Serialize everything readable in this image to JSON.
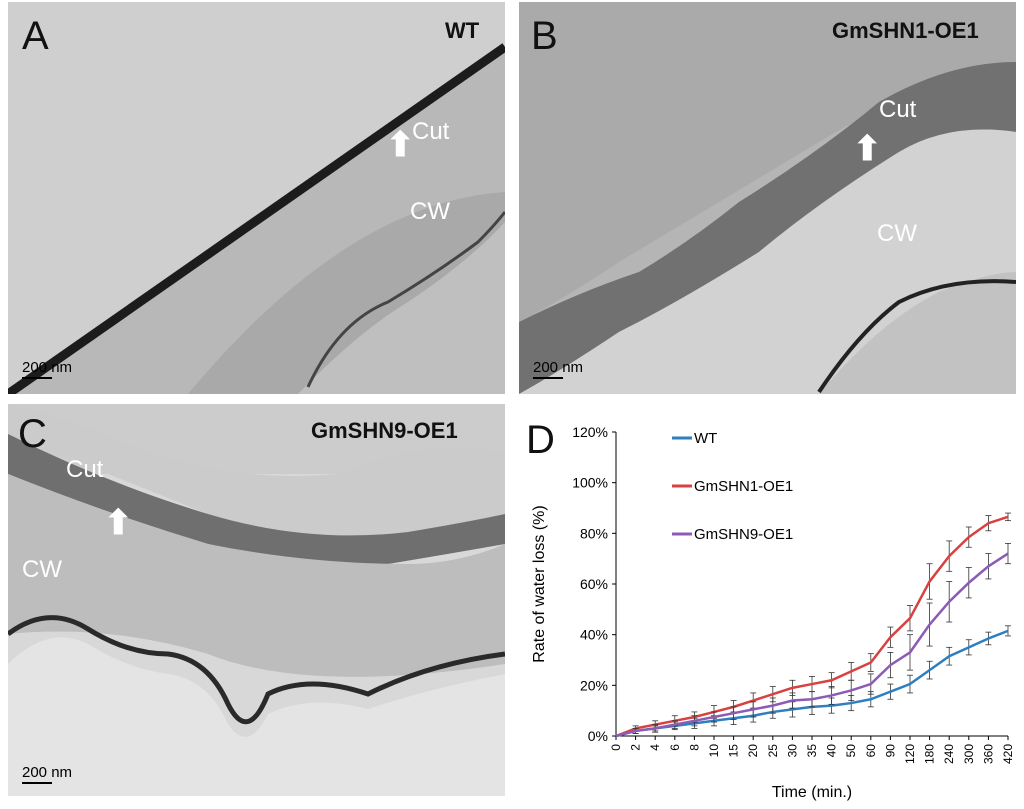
{
  "panels": {
    "a": {
      "letter": "A",
      "name": "WT",
      "cut": "Cut",
      "cw": "CW",
      "scale": "200 nm"
    },
    "b": {
      "letter": "B",
      "name": "GmSHN1-OE1",
      "cut": "Cut",
      "cw": "CW",
      "scale": "200 nm"
    },
    "c": {
      "letter": "C",
      "name": "GmSHN9-OE1",
      "cut": "Cut",
      "cw": "CW",
      "scale": "200 nm"
    },
    "d": {
      "letter": "D"
    }
  },
  "chart_data": {
    "type": "line",
    "title": "",
    "xlabel": "Time (min.)",
    "ylabel": "Rate of water loss (%)",
    "ylim": [
      0,
      120
    ],
    "yticks": [
      "0%",
      "20%",
      "40%",
      "60%",
      "80%",
      "100%",
      "120%"
    ],
    "x": [
      "0",
      "2",
      "4",
      "6",
      "8",
      "10",
      "15",
      "20",
      "25",
      "30",
      "35",
      "40",
      "50",
      "60",
      "90",
      "120",
      "180",
      "240",
      "300",
      "360",
      "420"
    ],
    "grid": false,
    "legend_position": "top",
    "series": [
      {
        "name": "WT",
        "color": "#2e7fbf",
        "values": [
          0,
          2,
          3,
          4,
          5,
          6,
          7,
          8,
          9.5,
          10.5,
          11.5,
          12,
          13,
          14.5,
          17.5,
          20.5,
          26,
          31.5,
          35,
          38.5,
          41.5
        ],
        "errors": [
          0,
          1,
          1,
          1.5,
          2,
          2,
          2.5,
          2.5,
          2.5,
          3,
          3,
          3,
          3,
          3,
          3,
          3.5,
          3.5,
          3.5,
          3,
          2.5,
          2
        ]
      },
      {
        "name": "GmSHN1-OE1",
        "color": "#d94141",
        "values": [
          0,
          3,
          4.5,
          6,
          7.5,
          9.5,
          11.5,
          14,
          16.5,
          19,
          20.5,
          22,
          25.5,
          29,
          39,
          46.5,
          61,
          71,
          78.5,
          84,
          86.5
        ],
        "errors": [
          0,
          1,
          1.5,
          2,
          2,
          2.5,
          2.5,
          3,
          3,
          3,
          3,
          3,
          3.5,
          3.5,
          4,
          5,
          7,
          6,
          4,
          3,
          1.5
        ]
      },
      {
        "name": "GmSHN9-OE1",
        "color": "#8c5bb5",
        "values": [
          0,
          2,
          3,
          4.5,
          6,
          7.5,
          9,
          10.5,
          12,
          14,
          14.5,
          16,
          18,
          20.5,
          28,
          33,
          44,
          53,
          60.5,
          67,
          72
        ],
        "errors": [
          0,
          1,
          1.5,
          1.5,
          2,
          2,
          2.5,
          3,
          3,
          3,
          3,
          3.5,
          4,
          4,
          5,
          7,
          8.5,
          8,
          6,
          5,
          4
        ]
      }
    ]
  }
}
